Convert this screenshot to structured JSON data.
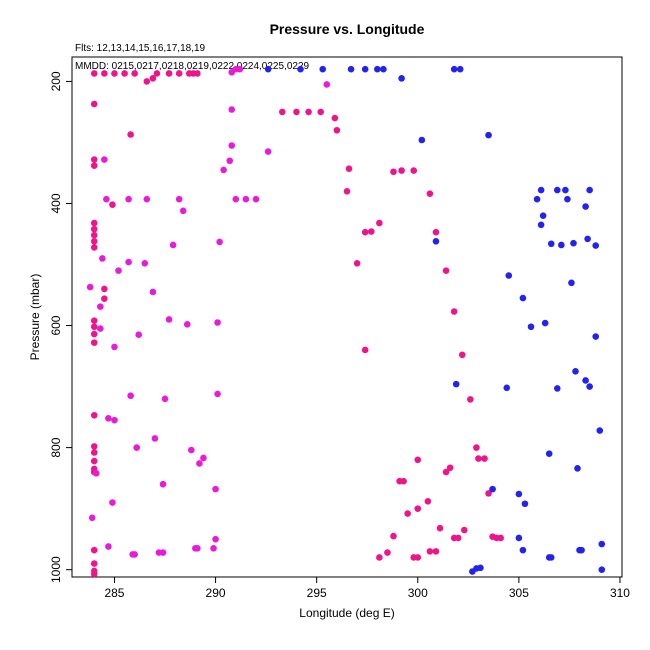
{
  "chart_data": {
    "type": "scatter",
    "title": "Pressure vs. Longitude",
    "subtitle_flts": "Flts: 12,13,14,15,16,17,18,19",
    "subtitle_mmdd": "MMDD: 0215,0217,0218,0219,0222,0224,0225,0229",
    "xlabel": "Longitude (deg E)",
    "ylabel": "Pressure (mbar)",
    "xlim": [
      282.9,
      310.1
    ],
    "ylim": [
      1012,
      160
    ],
    "y_reversed": true,
    "x_ticks": [
      "285",
      "290",
      "295",
      "300",
      "305",
      "310"
    ],
    "y_ticks": [
      "200",
      "400",
      "600",
      "800",
      "1000"
    ],
    "grid": false,
    "legend": "none",
    "colors": {
      "blue": "#2323f0",
      "magenta": "#e81cd8",
      "pink": "#f0148c"
    },
    "series": [
      {
        "color_key": "pink",
        "points": [
          [
            284.0,
            187
          ],
          [
            284.5,
            187
          ],
          [
            285.0,
            187
          ],
          [
            285.5,
            187
          ],
          [
            286.0,
            187
          ],
          [
            287.1,
            187
          ],
          [
            287.7,
            187
          ],
          [
            288.2,
            187
          ],
          [
            288.7,
            187
          ],
          [
            288.9,
            187
          ],
          [
            289.1,
            187
          ],
          [
            286.6,
            200
          ],
          [
            286.9,
            195
          ],
          [
            284.0,
            237
          ],
          [
            285.8,
            287
          ],
          [
            284.0,
            328
          ],
          [
            284.0,
            338
          ],
          [
            284.9,
            402
          ],
          [
            284.0,
            432
          ],
          [
            284.0,
            442
          ],
          [
            284.0,
            462
          ],
          [
            284.0,
            452
          ],
          [
            284.0,
            472
          ],
          [
            284.5,
            540
          ],
          [
            284.5,
            556
          ],
          [
            284.0,
            592
          ],
          [
            284.0,
            602
          ],
          [
            284.0,
            614
          ],
          [
            284.0,
            628
          ],
          [
            284.0,
            747
          ],
          [
            284.0,
            798
          ],
          [
            284.0,
            808
          ],
          [
            284.0,
            822
          ],
          [
            284.0,
            835
          ],
          [
            284.0,
            840
          ],
          [
            284.0,
            968
          ],
          [
            284.0,
            990
          ],
          [
            284.0,
            1002
          ],
          [
            284.0,
            1007
          ],
          [
            293.3,
            250
          ],
          [
            294.0,
            250
          ],
          [
            294.6,
            250
          ],
          [
            295.2,
            250
          ],
          [
            295.9,
            260
          ],
          [
            296.0,
            280
          ],
          [
            296.6,
            343
          ],
          [
            296.5,
            380
          ],
          [
            297.4,
            447
          ],
          [
            297.7,
            446
          ],
          [
            298.1,
            432
          ],
          [
            297.0,
            498
          ],
          [
            297.4,
            640
          ],
          [
            298.8,
            348
          ],
          [
            299.2,
            346
          ],
          [
            299.8,
            346
          ],
          [
            300.6,
            384
          ],
          [
            300.9,
            447
          ],
          [
            301.4,
            510
          ],
          [
            301.8,
            577
          ],
          [
            302.2,
            648
          ],
          [
            302.6,
            721
          ],
          [
            302.9,
            800
          ],
          [
            303.0,
            818
          ],
          [
            303.3,
            818
          ],
          [
            301.6,
            833
          ],
          [
            301.4,
            840
          ],
          [
            299.1,
            855
          ],
          [
            299.3,
            855
          ],
          [
            300.0,
            820
          ],
          [
            300.5,
            888
          ],
          [
            300.0,
            900
          ],
          [
            299.5,
            908
          ],
          [
            301.1,
            932
          ],
          [
            301.8,
            948
          ],
          [
            302.0,
            948
          ],
          [
            302.3,
            935
          ],
          [
            303.5,
            875
          ],
          [
            303.7,
            946
          ],
          [
            303.9,
            948
          ],
          [
            304.1,
            948
          ],
          [
            298.8,
            945
          ],
          [
            298.5,
            972
          ],
          [
            300.6,
            970
          ],
          [
            300.9,
            970
          ],
          [
            299.8,
            980
          ],
          [
            300.0,
            980
          ],
          [
            298.1,
            980
          ]
        ]
      },
      {
        "color_key": "magenta",
        "points": [
          [
            291.0,
            180
          ],
          [
            291.2,
            180
          ],
          [
            290.8,
            185
          ],
          [
            295.5,
            205
          ],
          [
            290.8,
            246
          ],
          [
            292.6,
            315
          ],
          [
            290.8,
            305
          ],
          [
            290.7,
            330
          ],
          [
            290.4,
            345
          ],
          [
            291.0,
            393
          ],
          [
            291.5,
            393
          ],
          [
            292.0,
            393
          ],
          [
            284.5,
            328
          ],
          [
            284.6,
            393
          ],
          [
            285.7,
            393
          ],
          [
            286.6,
            393
          ],
          [
            288.2,
            393
          ],
          [
            288.4,
            412
          ],
          [
            284.4,
            490
          ],
          [
            285.2,
            510
          ],
          [
            285.7,
            496
          ],
          [
            286.5,
            498
          ],
          [
            287.9,
            468
          ],
          [
            290.2,
            463
          ],
          [
            283.8,
            537
          ],
          [
            284.3,
            569
          ],
          [
            286.9,
            545
          ],
          [
            284.3,
            605
          ],
          [
            285.0,
            635
          ],
          [
            286.2,
            615
          ],
          [
            287.7,
            590
          ],
          [
            288.6,
            598
          ],
          [
            290.1,
            595
          ],
          [
            285.8,
            715
          ],
          [
            287.5,
            720
          ],
          [
            290.1,
            712
          ],
          [
            284.7,
            752
          ],
          [
            285.0,
            755
          ],
          [
            286.1,
            800
          ],
          [
            287.0,
            785
          ],
          [
            288.8,
            804
          ],
          [
            289.4,
            817
          ],
          [
            289.2,
            826
          ],
          [
            284.1,
            842
          ],
          [
            287.4,
            860
          ],
          [
            290.0,
            868
          ],
          [
            284.9,
            890
          ],
          [
            283.9,
            915
          ],
          [
            284.7,
            962
          ],
          [
            285.9,
            975
          ],
          [
            286.0,
            975
          ],
          [
            287.2,
            972
          ],
          [
            287.4,
            972
          ],
          [
            289.0,
            965
          ],
          [
            289.1,
            965
          ],
          [
            289.9,
            965
          ],
          [
            290.0,
            950
          ]
        ]
      },
      {
        "color_key": "blue",
        "points": [
          [
            292.6,
            180
          ],
          [
            294.2,
            180
          ],
          [
            295.3,
            180
          ],
          [
            296.7,
            180
          ],
          [
            297.4,
            180
          ],
          [
            298.0,
            180
          ],
          [
            298.3,
            180
          ],
          [
            301.8,
            180
          ],
          [
            302.1,
            180
          ],
          [
            299.2,
            195
          ],
          [
            303.5,
            288
          ],
          [
            300.2,
            296
          ],
          [
            306.1,
            378
          ],
          [
            306.9,
            378
          ],
          [
            307.3,
            378
          ],
          [
            308.5,
            378
          ],
          [
            305.9,
            393
          ],
          [
            307.4,
            393
          ],
          [
            306.2,
            420
          ],
          [
            306.1,
            435
          ],
          [
            308.3,
            405
          ],
          [
            306.6,
            466
          ],
          [
            307.1,
            468
          ],
          [
            307.7,
            465
          ],
          [
            308.4,
            458
          ],
          [
            308.8,
            469
          ],
          [
            300.9,
            462
          ],
          [
            304.5,
            518
          ],
          [
            307.6,
            530
          ],
          [
            305.2,
            555
          ],
          [
            305.6,
            602
          ],
          [
            306.3,
            596
          ],
          [
            308.8,
            618
          ],
          [
            301.9,
            696
          ],
          [
            304.4,
            702
          ],
          [
            306.9,
            703
          ],
          [
            307.8,
            675
          ],
          [
            308.3,
            690
          ],
          [
            308.5,
            700
          ],
          [
            309.0,
            772
          ],
          [
            306.5,
            810
          ],
          [
            307.9,
            834
          ],
          [
            303.7,
            868
          ],
          [
            305.0,
            876
          ],
          [
            305.3,
            892
          ],
          [
            305.0,
            948
          ],
          [
            305.2,
            968
          ],
          [
            306.5,
            980
          ],
          [
            306.6,
            980
          ],
          [
            308.0,
            968
          ],
          [
            308.1,
            968
          ],
          [
            309.1,
            958
          ],
          [
            302.7,
            1003
          ],
          [
            302.9,
            998
          ],
          [
            303.1,
            997
          ],
          [
            309.1,
            1000
          ]
        ]
      }
    ]
  }
}
